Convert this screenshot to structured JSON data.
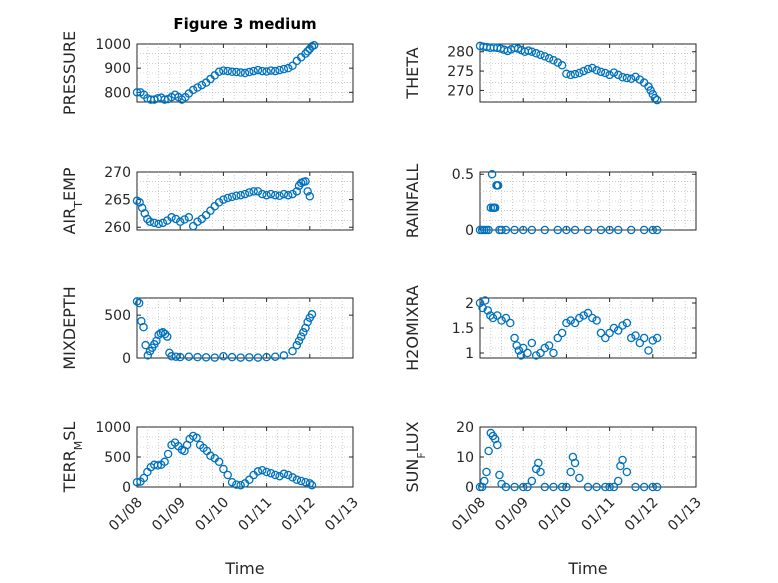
{
  "figure": {
    "title": "Figure 3 medium",
    "marker_color": "#0072BD",
    "x_tick_labels": [
      "01/08",
      "01/09",
      "01/10",
      "01/11",
      "01/12",
      "01/13"
    ],
    "x_label": "Time"
  },
  "chart_data": [
    {
      "type": "scatter",
      "title": "Figure 3 medium",
      "ylabel": "PRESSURE",
      "xlim": [
        0,
        5
      ],
      "ylim": [
        760,
        1000
      ],
      "yticks": [
        800,
        900,
        1000
      ],
      "grid": true,
      "x": [
        0.0,
        0.08,
        0.16,
        0.24,
        0.32,
        0.4,
        0.48,
        0.56,
        0.64,
        0.72,
        0.8,
        0.88,
        0.96,
        1.04,
        1.12,
        1.2,
        1.3,
        1.4,
        1.5,
        1.6,
        1.7,
        1.8,
        1.9,
        2.0,
        2.1,
        2.2,
        2.3,
        2.4,
        2.5,
        2.6,
        2.7,
        2.8,
        2.9,
        3.0,
        3.1,
        3.2,
        3.3,
        3.4,
        3.5,
        3.6,
        3.7,
        3.8,
        3.9,
        3.95,
        4.0,
        4.05,
        4.1
      ],
      "y": [
        800,
        800,
        790,
        775,
        770,
        770,
        775,
        778,
        770,
        772,
        780,
        790,
        780,
        770,
        780,
        795,
        810,
        820,
        830,
        840,
        855,
        870,
        885,
        890,
        888,
        885,
        884,
        882,
        880,
        884,
        888,
        892,
        888,
        886,
        890,
        888,
        892,
        896,
        900,
        910,
        930,
        945,
        960,
        970,
        980,
        990,
        995
      ]
    },
    {
      "type": "scatter",
      "ylabel": "THETA",
      "xlim": [
        0,
        5
      ],
      "ylim": [
        267,
        282
      ],
      "yticks": [
        270,
        275,
        280
      ],
      "grid": true,
      "x": [
        0.0,
        0.08,
        0.16,
        0.24,
        0.32,
        0.4,
        0.48,
        0.56,
        0.64,
        0.72,
        0.8,
        0.88,
        0.96,
        1.04,
        1.12,
        1.2,
        1.3,
        1.4,
        1.5,
        1.6,
        1.7,
        1.8,
        1.9,
        2.0,
        2.1,
        2.2,
        2.3,
        2.4,
        2.5,
        2.6,
        2.7,
        2.8,
        2.9,
        3.0,
        3.1,
        3.2,
        3.3,
        3.4,
        3.5,
        3.6,
        3.7,
        3.8,
        3.9,
        3.95,
        4.0,
        4.05,
        4.1
      ],
      "y": [
        281.5,
        281.3,
        281.2,
        281.0,
        281.1,
        281.0,
        280.8,
        280.5,
        280.2,
        280.6,
        281.0,
        280.8,
        280.4,
        280.0,
        280.3,
        280.0,
        279.6,
        279.2,
        278.8,
        278.3,
        277.8,
        277.2,
        276.5,
        274.3,
        274.0,
        274.2,
        274.5,
        275.0,
        275.5,
        275.8,
        275.2,
        274.8,
        274.5,
        274.0,
        274.6,
        274.0,
        273.4,
        273.2,
        273.0,
        273.5,
        272.8,
        272.0,
        271.0,
        270.0,
        269.0,
        268.0,
        267.5
      ]
    },
    {
      "type": "scatter",
      "ylabel": "AIR_TEMP",
      "xlim": [
        0,
        5
      ],
      "ylim": [
        259.5,
        270
      ],
      "yticks": [
        260,
        265,
        270
      ],
      "grid": true,
      "x": [
        0.0,
        0.06,
        0.12,
        0.18,
        0.24,
        0.3,
        0.4,
        0.5,
        0.6,
        0.7,
        0.8,
        0.9,
        1.0,
        1.1,
        1.2,
        1.3,
        1.4,
        1.5,
        1.6,
        1.7,
        1.8,
        1.9,
        2.0,
        2.1,
        2.2,
        2.3,
        2.4,
        2.5,
        2.6,
        2.7,
        2.8,
        2.9,
        3.0,
        3.1,
        3.2,
        3.3,
        3.4,
        3.5,
        3.6,
        3.7,
        3.75,
        3.8,
        3.85,
        3.9,
        3.95,
        4.0
      ],
      "y": [
        264.8,
        264.5,
        263.5,
        262.5,
        261.5,
        261.0,
        260.8,
        260.6,
        260.8,
        261.2,
        261.8,
        261.5,
        261.0,
        261.4,
        261.8,
        260.2,
        261.0,
        261.5,
        262.2,
        263.0,
        263.8,
        264.5,
        265.0,
        265.3,
        265.5,
        265.7,
        265.8,
        266.0,
        266.3,
        266.5,
        266.5,
        266.0,
        265.8,
        266.0,
        265.8,
        265.7,
        266.0,
        265.8,
        266.0,
        266.5,
        267.5,
        268.0,
        268.2,
        268.3,
        266.5,
        265.6
      ]
    },
    {
      "type": "scatter",
      "ylabel": "RAINFALL",
      "xlim": [
        0,
        5
      ],
      "ylim": [
        0,
        0.52
      ],
      "yticks": [
        0,
        0.5
      ],
      "grid": true,
      "x": [
        0.0,
        0.05,
        0.1,
        0.15,
        0.2,
        0.25,
        0.28,
        0.3,
        0.32,
        0.35,
        0.38,
        0.4,
        0.42,
        0.45,
        0.5,
        0.6,
        0.8,
        1.0,
        1.2,
        1.5,
        1.8,
        2.0,
        2.2,
        2.5,
        2.8,
        3.0,
        3.2,
        3.5,
        3.8,
        4.0,
        4.1
      ],
      "y": [
        0,
        0,
        0,
        0,
        0,
        0.2,
        0.5,
        0.2,
        0.2,
        0.2,
        0.4,
        0.4,
        0.4,
        0,
        0,
        0,
        0,
        0,
        0,
        0,
        0,
        0,
        0,
        0,
        0,
        0,
        0,
        0,
        0,
        0,
        0
      ]
    },
    {
      "type": "scatter",
      "ylabel": "MIXDEPTH",
      "xlim": [
        0,
        5
      ],
      "ylim": [
        0,
        700
      ],
      "yticks": [
        0,
        500
      ],
      "grid": true,
      "x": [
        0.0,
        0.05,
        0.1,
        0.15,
        0.2,
        0.25,
        0.3,
        0.35,
        0.4,
        0.45,
        0.5,
        0.55,
        0.6,
        0.65,
        0.7,
        0.75,
        0.8,
        0.9,
        1.0,
        1.2,
        1.4,
        1.6,
        1.8,
        2.0,
        2.2,
        2.4,
        2.6,
        2.8,
        3.0,
        3.2,
        3.4,
        3.6,
        3.7,
        3.75,
        3.8,
        3.85,
        3.9,
        3.95,
        4.0,
        4.05
      ],
      "y": [
        660,
        640,
        430,
        360,
        150,
        30,
        80,
        120,
        160,
        200,
        270,
        290,
        300,
        280,
        250,
        60,
        20,
        15,
        10,
        15,
        10,
        8,
        5,
        20,
        10,
        5,
        8,
        5,
        10,
        15,
        30,
        80,
        150,
        200,
        250,
        300,
        350,
        420,
        470,
        510
      ]
    },
    {
      "type": "scatter",
      "ylabel": "H2OMIXRA",
      "xlim": [
        0,
        5
      ],
      "ylim": [
        0.9,
        2.1
      ],
      "yticks": [
        1,
        1.5,
        2
      ],
      "grid": true,
      "x": [
        0.0,
        0.06,
        0.12,
        0.18,
        0.24,
        0.3,
        0.4,
        0.5,
        0.6,
        0.7,
        0.8,
        0.85,
        0.9,
        0.95,
        1.0,
        1.1,
        1.2,
        1.3,
        1.4,
        1.5,
        1.6,
        1.7,
        1.8,
        1.9,
        2.0,
        2.1,
        2.2,
        2.3,
        2.4,
        2.5,
        2.6,
        2.7,
        2.8,
        2.9,
        3.0,
        3.1,
        3.2,
        3.3,
        3.4,
        3.5,
        3.6,
        3.7,
        3.8,
        3.9,
        4.0,
        4.1
      ],
      "y": [
        2.0,
        1.9,
        2.05,
        1.85,
        1.75,
        1.7,
        1.75,
        1.65,
        1.7,
        1.6,
        1.3,
        1.15,
        1.05,
        0.95,
        1.1,
        1.0,
        1.2,
        0.95,
        1.0,
        1.1,
        1.15,
        1.0,
        1.3,
        1.4,
        1.6,
        1.65,
        1.6,
        1.7,
        1.75,
        1.8,
        1.7,
        1.65,
        1.4,
        1.3,
        1.4,
        1.5,
        1.45,
        1.55,
        1.6,
        1.3,
        1.35,
        1.2,
        1.3,
        1.05,
        1.25,
        1.3
      ]
    },
    {
      "type": "scatter",
      "ylabel": "TERR_MSL",
      "xlim": [
        0,
        5
      ],
      "ylim": [
        0,
        1000
      ],
      "yticks": [
        0,
        500,
        1000
      ],
      "grid": true,
      "x": [
        0.0,
        0.08,
        0.16,
        0.24,
        0.32,
        0.4,
        0.48,
        0.56,
        0.64,
        0.72,
        0.8,
        0.88,
        0.96,
        1.04,
        1.1,
        1.16,
        1.22,
        1.3,
        1.38,
        1.46,
        1.54,
        1.62,
        1.7,
        1.8,
        1.9,
        2.0,
        2.1,
        2.2,
        2.3,
        2.4,
        2.5,
        2.6,
        2.7,
        2.8,
        2.9,
        3.0,
        3.1,
        3.2,
        3.3,
        3.4,
        3.5,
        3.6,
        3.7,
        3.8,
        3.9,
        4.0,
        4.05
      ],
      "y": [
        80,
        90,
        150,
        250,
        330,
        370,
        360,
        370,
        420,
        550,
        700,
        740,
        680,
        620,
        600,
        700,
        800,
        850,
        820,
        700,
        650,
        600,
        520,
        480,
        420,
        300,
        200,
        80,
        40,
        30,
        60,
        120,
        200,
        260,
        280,
        250,
        230,
        200,
        180,
        220,
        200,
        160,
        120,
        100,
        80,
        60,
        30
      ]
    },
    {
      "type": "scatter",
      "ylabel": "SUN_FLUX",
      "xlim": [
        0,
        5
      ],
      "ylim": [
        0,
        20
      ],
      "yticks": [
        0,
        10,
        20
      ],
      "grid": true,
      "x": [
        0.0,
        0.05,
        0.1,
        0.15,
        0.2,
        0.25,
        0.3,
        0.35,
        0.4,
        0.45,
        0.5,
        0.6,
        0.8,
        1.0,
        1.1,
        1.2,
        1.3,
        1.35,
        1.4,
        1.5,
        1.7,
        1.9,
        2.0,
        2.1,
        2.15,
        2.2,
        2.3,
        2.5,
        2.7,
        2.9,
        3.0,
        3.1,
        3.2,
        3.25,
        3.3,
        3.4,
        3.6,
        3.8,
        4.0,
        4.1
      ],
      "y": [
        0,
        0,
        2,
        5,
        12,
        18,
        17,
        16,
        14,
        4,
        1,
        0,
        0,
        0,
        0,
        2,
        6,
        8,
        5,
        0,
        0,
        0,
        0,
        5,
        10,
        8,
        3,
        0,
        0,
        0,
        0,
        0,
        2,
        7,
        9,
        5,
        0,
        0,
        0,
        0
      ]
    }
  ]
}
